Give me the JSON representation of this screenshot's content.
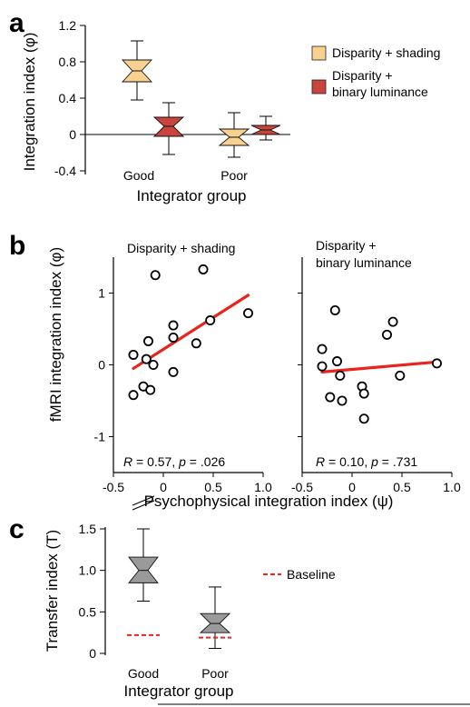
{
  "chart_data": [
    {
      "panel": "a",
      "type": "box",
      "ylabel": "Integration index (φ)",
      "xlabel": "Integrator group",
      "categories": [
        "Good",
        "Poor"
      ],
      "ylim": [
        -0.4,
        1.2
      ],
      "yticks": [
        "1.2",
        "0.8",
        "0.4",
        "0",
        "-0.4"
      ],
      "legend_position": "right",
      "series": [
        {
          "name": "Disparity + shading",
          "color": "#f8d191",
          "whisker_low": [
            0.38,
            -0.25
          ],
          "q1": [
            0.58,
            -0.12
          ],
          "median": [
            0.7,
            -0.03
          ],
          "q3": [
            0.82,
            0.06
          ],
          "whisker_high": [
            1.03,
            0.24
          ]
        },
        {
          "name": "Disparity + binary luminance",
          "legend_line1": "Disparity +",
          "legend_line2": "binary luminance",
          "color": "#c9443c",
          "whisker_low": [
            -0.22,
            -0.06
          ],
          "q1": [
            -0.02,
            0.0
          ],
          "median": [
            0.09,
            0.05
          ],
          "q3": [
            0.19,
            0.1
          ],
          "whisker_high": [
            0.35,
            0.2
          ]
        }
      ]
    },
    {
      "panel": "b",
      "type": "scatter",
      "ylabel": "fMRI integration index (φ)",
      "xlabel": "Psychophysical integration index (ψ)",
      "xlim": [
        -0.5,
        1.0
      ],
      "ylim": [
        -1.5,
        1.5
      ],
      "xticks": [
        "-0.5",
        "0",
        "0.5",
        "1.0"
      ],
      "yticks": [
        "1",
        "0",
        "-1"
      ],
      "subplots": [
        {
          "title": "Disparity + shading",
          "points": [
            [
              -0.3,
              0.14
            ],
            [
              -0.3,
              -0.42
            ],
            [
              -0.2,
              -0.3
            ],
            [
              -0.17,
              0.08
            ],
            [
              -0.15,
              0.33
            ],
            [
              -0.13,
              -0.35
            ],
            [
              -0.1,
              0.0
            ],
            [
              -0.08,
              1.25
            ],
            [
              0.1,
              0.55
            ],
            [
              0.1,
              0.38
            ],
            [
              0.1,
              -0.1
            ],
            [
              0.33,
              0.3
            ],
            [
              0.4,
              1.33
            ],
            [
              0.47,
              0.62
            ],
            [
              0.85,
              0.72
            ]
          ],
          "fit": [
            [
              -0.3,
              -0.05
            ],
            [
              0.85,
              0.97
            ]
          ],
          "stat_r": "0.57",
          "stat_p": ".026"
        },
        {
          "title_line1": "Disparity +",
          "title_line2": "binary luminance",
          "points": [
            [
              -0.3,
              0.22
            ],
            [
              -0.3,
              -0.02
            ],
            [
              -0.22,
              -0.45
            ],
            [
              -0.17,
              0.76
            ],
            [
              -0.15,
              0.05
            ],
            [
              -0.12,
              -0.15
            ],
            [
              -0.1,
              -0.5
            ],
            [
              0.1,
              -0.3
            ],
            [
              0.12,
              -0.4
            ],
            [
              0.12,
              -0.75
            ],
            [
              0.35,
              0.42
            ],
            [
              0.41,
              0.6
            ],
            [
              0.48,
              -0.15
            ],
            [
              0.85,
              0.02
            ]
          ],
          "fit": [
            [
              -0.3,
              -0.1
            ],
            [
              0.85,
              0.04
            ]
          ],
          "stat_r": "0.10",
          "stat_p": ".731"
        }
      ]
    },
    {
      "panel": "c",
      "type": "box",
      "ylabel": "Transfer index (T)",
      "xlabel": "Integrator group",
      "categories": [
        "Good",
        "Poor"
      ],
      "ylim": [
        0,
        1.5
      ],
      "yticks": [
        "1.5",
        "1.0",
        "0.5",
        "0"
      ],
      "legend_position": "right",
      "series": [
        {
          "name": "",
          "color": "#9a9a9a",
          "whisker_low": [
            0.63,
            0.06
          ],
          "q1": [
            0.85,
            0.25
          ],
          "median": [
            1.0,
            0.36
          ],
          "q3": [
            1.16,
            0.48
          ],
          "whisker_high": [
            1.5,
            0.8
          ]
        }
      ],
      "baseline": {
        "label": "Baseline",
        "color": "#e8241c",
        "values": [
          0.22,
          0.19
        ]
      }
    }
  ]
}
